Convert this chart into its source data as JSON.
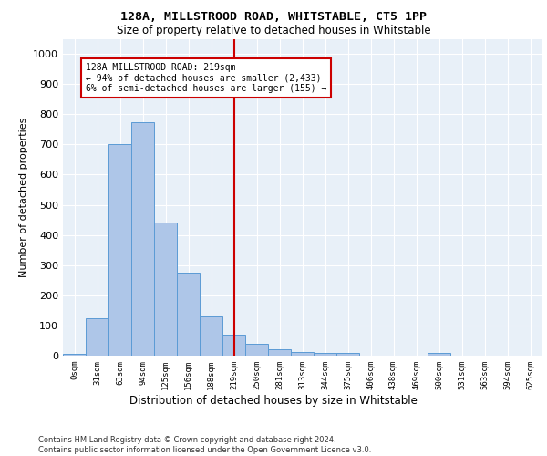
{
  "title1": "128A, MILLSTROOD ROAD, WHITSTABLE, CT5 1PP",
  "title2": "Size of property relative to detached houses in Whitstable",
  "xlabel": "Distribution of detached houses by size in Whitstable",
  "ylabel": "Number of detached properties",
  "bin_labels": [
    "0sqm",
    "31sqm",
    "63sqm",
    "94sqm",
    "125sqm",
    "156sqm",
    "188sqm",
    "219sqm",
    "250sqm",
    "281sqm",
    "313sqm",
    "344sqm",
    "375sqm",
    "406sqm",
    "438sqm",
    "469sqm",
    "500sqm",
    "531sqm",
    "563sqm",
    "594sqm",
    "625sqm"
  ],
  "bar_values": [
    5,
    125,
    700,
    775,
    440,
    275,
    130,
    70,
    40,
    22,
    12,
    8,
    10,
    0,
    0,
    0,
    8,
    0,
    0,
    0,
    0
  ],
  "bar_color": "#aec6e8",
  "bar_edge_color": "#5b9bd5",
  "vline_x_idx": 7,
  "vline_color": "#cc0000",
  "annotation_text": "128A MILLSTROOD ROAD: 219sqm\n← 94% of detached houses are smaller (2,433)\n6% of semi-detached houses are larger (155) →",
  "annotation_box_color": "#ffffff",
  "annotation_box_edgecolor": "#cc0000",
  "ylim": [
    0,
    1050
  ],
  "yticks": [
    0,
    100,
    200,
    300,
    400,
    500,
    600,
    700,
    800,
    900,
    1000
  ],
  "background_color": "#e8f0f8",
  "footer_line1": "Contains HM Land Registry data © Crown copyright and database right 2024.",
  "footer_line2": "Contains public sector information licensed under the Open Government Licence v3.0."
}
